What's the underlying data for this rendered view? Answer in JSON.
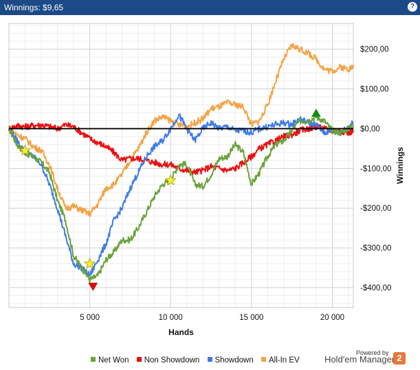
{
  "header": {
    "title": "Winnings: $9,65",
    "help_label": "?"
  },
  "footer": {
    "powered_by": "Powered by",
    "brand": "Hold'em Manager",
    "brand_badge": "2"
  },
  "chart_data": {
    "type": "line",
    "title": "",
    "xlabel": "Hands",
    "ylabel": "Winnings",
    "xlim": [
      0,
      21300
    ],
    "ylim": [
      -450,
      265
    ],
    "x_ticks": [
      5000,
      10000,
      15000,
      20000
    ],
    "x_tick_labels": [
      "5 000",
      "10 000",
      "15 000",
      "20 000"
    ],
    "y_ticks": [
      200,
      100,
      0,
      -100,
      -200,
      -300,
      -400
    ],
    "y_tick_labels": [
      "$200,00",
      "$100,00",
      "$0,00",
      "-$100,00",
      "-$200,00",
      "-$300,00",
      "-$400,00"
    ],
    "grid": true,
    "legend_position": "bottom",
    "colors": {
      "net_won": "#6aa33a",
      "non_showdown": "#e81010",
      "showdown": "#3f7be8",
      "all_in_ev": "#f4a243",
      "zero_line": "#000000",
      "grid": "#d9d9d9"
    },
    "x": [
      0,
      500,
      1000,
      1500,
      2000,
      2500,
      3000,
      3500,
      4000,
      4500,
      5000,
      5500,
      6000,
      6500,
      7000,
      7500,
      8000,
      8500,
      9000,
      9500,
      10000,
      10500,
      11000,
      11500,
      12000,
      12500,
      13000,
      13500,
      14000,
      14500,
      15000,
      15500,
      16000,
      16500,
      17000,
      17500,
      18000,
      18500,
      19000,
      19500,
      20000,
      20500,
      21000,
      21300
    ],
    "series": [
      {
        "name": "Net Won",
        "color": "#6aa33a",
        "values": [
          0,
          -40,
          -60,
          -70,
          -85,
          -110,
          -180,
          -230,
          -320,
          -350,
          -380,
          -370,
          -330,
          -310,
          -280,
          -280,
          -250,
          -210,
          -170,
          -140,
          -130,
          -90,
          -90,
          -140,
          -145,
          -115,
          -75,
          -70,
          -40,
          -60,
          -140,
          -110,
          -70,
          -40,
          -30,
          -5,
          20,
          20,
          30,
          20,
          -5,
          -10,
          0,
          10
        ]
      },
      {
        "name": "Non Showdown",
        "color": "#e81010",
        "values": [
          0,
          8,
          5,
          8,
          10,
          5,
          0,
          10,
          5,
          -10,
          -25,
          -35,
          -45,
          -60,
          -80,
          -75,
          -75,
          -80,
          -85,
          -90,
          -90,
          -100,
          -105,
          -110,
          -105,
          -95,
          -100,
          -105,
          -100,
          -85,
          -70,
          -50,
          -40,
          -30,
          -20,
          -15,
          -5,
          0,
          5,
          0,
          -5,
          -5,
          -10,
          -5
        ]
      },
      {
        "name": "Showdown",
        "color": "#3f7be8",
        "values": [
          0,
          -30,
          -60,
          -70,
          -90,
          -140,
          -200,
          -270,
          -340,
          -350,
          -370,
          -330,
          -290,
          -230,
          -200,
          -150,
          -110,
          -70,
          -45,
          -30,
          0,
          35,
          0,
          -30,
          0,
          15,
          0,
          5,
          -5,
          -5,
          -10,
          0,
          5,
          10,
          15,
          10,
          25,
          15,
          10,
          -10,
          -5,
          -10,
          5,
          15
        ]
      },
      {
        "name": "All-In EV",
        "color": "#f4a243",
        "values": [
          0,
          -15,
          -25,
          -45,
          -55,
          -90,
          -150,
          -200,
          -195,
          -205,
          -215,
          -190,
          -150,
          -140,
          -115,
          -80,
          -50,
          -10,
          20,
          30,
          20,
          10,
          5,
          15,
          25,
          50,
          55,
          65,
          60,
          55,
          10,
          20,
          60,
          120,
          175,
          210,
          200,
          190,
          175,
          150,
          145,
          155,
          150,
          155
        ]
      }
    ],
    "markers": [
      {
        "type": "star",
        "x": 1000,
        "y": -55
      },
      {
        "type": "star",
        "x": 5000,
        "y": -340
      },
      {
        "type": "star",
        "x": 10000,
        "y": -130
      },
      {
        "type": "max",
        "x": 19000,
        "y": 40
      },
      {
        "type": "min",
        "x": 5200,
        "y": -398
      }
    ]
  }
}
